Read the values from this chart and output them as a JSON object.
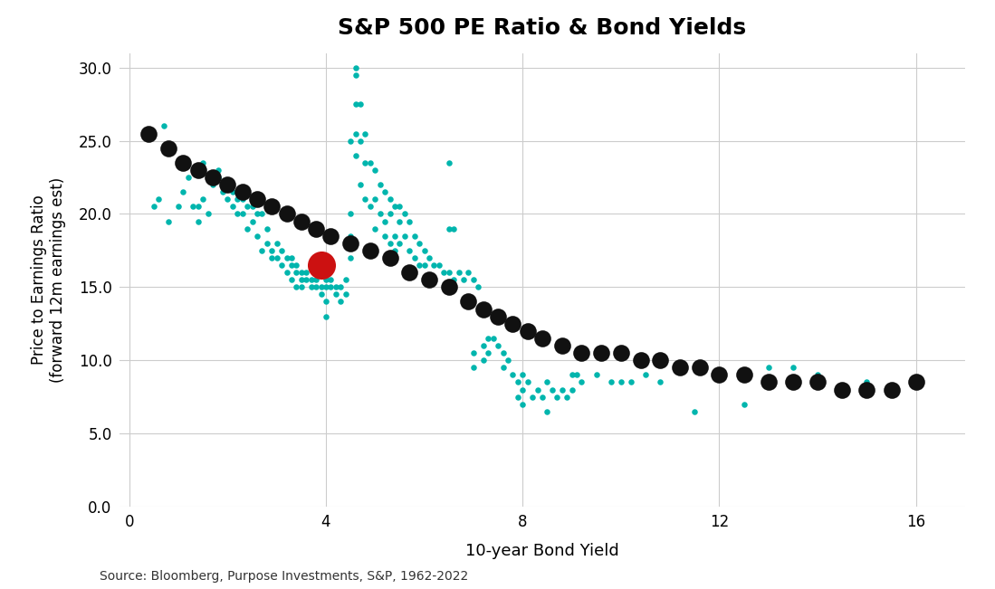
{
  "title": "S&P 500 PE Ratio & Bond Yields",
  "xlabel": "10-year Bond Yield",
  "ylabel": "Price to Earnings Ratio\n(forward 12m earnings est)",
  "source_text": "Source: Bloomberg, Purpose Investments, S&P, 1962-2022",
  "xlim": [
    -0.2,
    17
  ],
  "ylim": [
    0,
    31
  ],
  "xticks": [
    0,
    4,
    8,
    12,
    16
  ],
  "yticks": [
    0.0,
    5.0,
    10.0,
    15.0,
    20.0,
    25.0,
    30.0
  ],
  "background_color": "#ffffff",
  "grid_color": "#cccccc",
  "teal_color": "#00B5AD",
  "black_color": "#111111",
  "red_color": "#cc1111",
  "teal_dots": [
    [
      0.5,
      20.5
    ],
    [
      0.6,
      21.0
    ],
    [
      0.7,
      26.0
    ],
    [
      0.8,
      19.5
    ],
    [
      1.0,
      20.5
    ],
    [
      1.1,
      21.5
    ],
    [
      1.2,
      22.5
    ],
    [
      1.3,
      20.5
    ],
    [
      1.4,
      19.5
    ],
    [
      1.4,
      20.5
    ],
    [
      1.5,
      23.5
    ],
    [
      1.5,
      21.0
    ],
    [
      1.6,
      22.5
    ],
    [
      1.6,
      20.0
    ],
    [
      1.7,
      22.0
    ],
    [
      1.8,
      23.0
    ],
    [
      1.8,
      22.5
    ],
    [
      1.9,
      22.0
    ],
    [
      1.9,
      21.5
    ],
    [
      2.0,
      22.0
    ],
    [
      2.0,
      21.0
    ],
    [
      2.1,
      21.5
    ],
    [
      2.1,
      20.5
    ],
    [
      2.2,
      21.0
    ],
    [
      2.2,
      20.0
    ],
    [
      2.3,
      21.0
    ],
    [
      2.3,
      20.0
    ],
    [
      2.4,
      20.5
    ],
    [
      2.4,
      19.0
    ],
    [
      2.5,
      20.5
    ],
    [
      2.5,
      19.5
    ],
    [
      2.6,
      20.0
    ],
    [
      2.6,
      18.5
    ],
    [
      2.7,
      20.0
    ],
    [
      2.7,
      17.5
    ],
    [
      2.8,
      19.0
    ],
    [
      2.8,
      18.0
    ],
    [
      2.9,
      17.5
    ],
    [
      2.9,
      17.0
    ],
    [
      3.0,
      18.0
    ],
    [
      3.0,
      17.0
    ],
    [
      3.1,
      17.5
    ],
    [
      3.1,
      16.5
    ],
    [
      3.2,
      17.0
    ],
    [
      3.2,
      16.0
    ],
    [
      3.3,
      17.0
    ],
    [
      3.3,
      16.5
    ],
    [
      3.3,
      15.5
    ],
    [
      3.4,
      16.5
    ],
    [
      3.4,
      16.0
    ],
    [
      3.4,
      15.0
    ],
    [
      3.5,
      16.0
    ],
    [
      3.5,
      15.5
    ],
    [
      3.5,
      15.0
    ],
    [
      3.6,
      16.0
    ],
    [
      3.6,
      15.5
    ],
    [
      3.7,
      15.5
    ],
    [
      3.7,
      15.0
    ],
    [
      3.8,
      15.5
    ],
    [
      3.8,
      15.0
    ],
    [
      3.9,
      15.0
    ],
    [
      3.9,
      14.5
    ],
    [
      4.0,
      15.5
    ],
    [
      4.0,
      15.0
    ],
    [
      4.0,
      14.0
    ],
    [
      4.0,
      13.0
    ],
    [
      4.1,
      15.5
    ],
    [
      4.1,
      15.0
    ],
    [
      4.2,
      15.0
    ],
    [
      4.2,
      14.5
    ],
    [
      4.3,
      15.0
    ],
    [
      4.3,
      14.0
    ],
    [
      4.4,
      15.5
    ],
    [
      4.4,
      14.5
    ],
    [
      4.5,
      25.0
    ],
    [
      4.5,
      20.0
    ],
    [
      4.5,
      18.5
    ],
    [
      4.5,
      17.0
    ],
    [
      4.6,
      30.0
    ],
    [
      4.6,
      29.5
    ],
    [
      4.6,
      27.5
    ],
    [
      4.6,
      25.5
    ],
    [
      4.6,
      24.0
    ],
    [
      4.7,
      27.5
    ],
    [
      4.7,
      25.0
    ],
    [
      4.7,
      22.0
    ],
    [
      4.8,
      25.5
    ],
    [
      4.8,
      23.5
    ],
    [
      4.8,
      21.0
    ],
    [
      4.9,
      23.5
    ],
    [
      4.9,
      20.5
    ],
    [
      5.0,
      23.0
    ],
    [
      5.0,
      21.0
    ],
    [
      5.0,
      19.0
    ],
    [
      5.0,
      17.5
    ],
    [
      5.1,
      22.0
    ],
    [
      5.1,
      20.0
    ],
    [
      5.2,
      21.5
    ],
    [
      5.2,
      19.5
    ],
    [
      5.2,
      18.5
    ],
    [
      5.3,
      21.0
    ],
    [
      5.3,
      20.0
    ],
    [
      5.3,
      18.0
    ],
    [
      5.4,
      20.5
    ],
    [
      5.4,
      18.5
    ],
    [
      5.4,
      17.5
    ],
    [
      5.5,
      20.5
    ],
    [
      5.5,
      19.5
    ],
    [
      5.5,
      18.0
    ],
    [
      5.6,
      20.0
    ],
    [
      5.6,
      18.5
    ],
    [
      5.7,
      19.5
    ],
    [
      5.7,
      17.5
    ],
    [
      5.8,
      18.5
    ],
    [
      5.8,
      17.0
    ],
    [
      5.9,
      18.0
    ],
    [
      5.9,
      16.5
    ],
    [
      6.0,
      17.5
    ],
    [
      6.0,
      16.5
    ],
    [
      6.1,
      17.0
    ],
    [
      6.2,
      16.5
    ],
    [
      6.3,
      16.5
    ],
    [
      6.4,
      16.0
    ],
    [
      6.5,
      23.5
    ],
    [
      6.5,
      19.0
    ],
    [
      6.5,
      16.0
    ],
    [
      6.6,
      19.0
    ],
    [
      6.6,
      15.5
    ],
    [
      6.7,
      16.0
    ],
    [
      6.8,
      15.5
    ],
    [
      6.9,
      16.0
    ],
    [
      7.0,
      15.5
    ],
    [
      7.0,
      10.5
    ],
    [
      7.0,
      9.5
    ],
    [
      7.1,
      15.0
    ],
    [
      7.2,
      11.0
    ],
    [
      7.2,
      10.0
    ],
    [
      7.3,
      11.5
    ],
    [
      7.3,
      10.5
    ],
    [
      7.4,
      11.5
    ],
    [
      7.5,
      11.0
    ],
    [
      7.6,
      10.5
    ],
    [
      7.6,
      9.5
    ],
    [
      7.7,
      10.0
    ],
    [
      7.8,
      9.0
    ],
    [
      7.9,
      8.5
    ],
    [
      7.9,
      7.5
    ],
    [
      8.0,
      9.0
    ],
    [
      8.0,
      8.0
    ],
    [
      8.0,
      7.0
    ],
    [
      8.1,
      8.5
    ],
    [
      8.2,
      7.5
    ],
    [
      8.3,
      8.0
    ],
    [
      8.4,
      7.5
    ],
    [
      8.5,
      8.5
    ],
    [
      8.5,
      6.5
    ],
    [
      8.6,
      8.0
    ],
    [
      8.7,
      7.5
    ],
    [
      8.8,
      8.0
    ],
    [
      8.9,
      7.5
    ],
    [
      9.0,
      9.0
    ],
    [
      9.0,
      8.0
    ],
    [
      9.1,
      9.0
    ],
    [
      9.2,
      8.5
    ],
    [
      9.5,
      9.0
    ],
    [
      9.8,
      8.5
    ],
    [
      10.0,
      8.5
    ],
    [
      10.2,
      8.5
    ],
    [
      10.5,
      9.0
    ],
    [
      10.8,
      8.5
    ],
    [
      11.5,
      6.5
    ],
    [
      12.5,
      7.0
    ],
    [
      13.0,
      9.5
    ],
    [
      13.5,
      9.5
    ],
    [
      14.0,
      9.0
    ],
    [
      15.0,
      8.5
    ],
    [
      16.0,
      8.5
    ]
  ],
  "black_dots": [
    [
      0.4,
      25.5
    ],
    [
      0.8,
      24.5
    ],
    [
      1.1,
      23.5
    ],
    [
      1.4,
      23.0
    ],
    [
      1.7,
      22.5
    ],
    [
      2.0,
      22.0
    ],
    [
      2.3,
      21.5
    ],
    [
      2.6,
      21.0
    ],
    [
      2.9,
      20.5
    ],
    [
      3.2,
      20.0
    ],
    [
      3.5,
      19.5
    ],
    [
      3.8,
      19.0
    ],
    [
      4.1,
      18.5
    ],
    [
      4.5,
      18.0
    ],
    [
      4.9,
      17.5
    ],
    [
      5.3,
      17.0
    ],
    [
      5.7,
      16.0
    ],
    [
      6.1,
      15.5
    ],
    [
      6.5,
      15.0
    ],
    [
      6.9,
      14.0
    ],
    [
      7.2,
      13.5
    ],
    [
      7.5,
      13.0
    ],
    [
      7.8,
      12.5
    ],
    [
      8.1,
      12.0
    ],
    [
      8.4,
      11.5
    ],
    [
      8.8,
      11.0
    ],
    [
      9.2,
      10.5
    ],
    [
      9.6,
      10.5
    ],
    [
      10.0,
      10.5
    ],
    [
      10.4,
      10.0
    ],
    [
      10.8,
      10.0
    ],
    [
      11.2,
      9.5
    ],
    [
      11.6,
      9.5
    ],
    [
      12.0,
      9.0
    ],
    [
      12.5,
      9.0
    ],
    [
      13.0,
      8.5
    ],
    [
      13.5,
      8.5
    ],
    [
      14.0,
      8.5
    ],
    [
      14.5,
      8.0
    ],
    [
      15.0,
      8.0
    ],
    [
      15.5,
      8.0
    ],
    [
      16.0,
      8.5
    ]
  ],
  "red_dot": [
    3.9,
    16.5
  ]
}
